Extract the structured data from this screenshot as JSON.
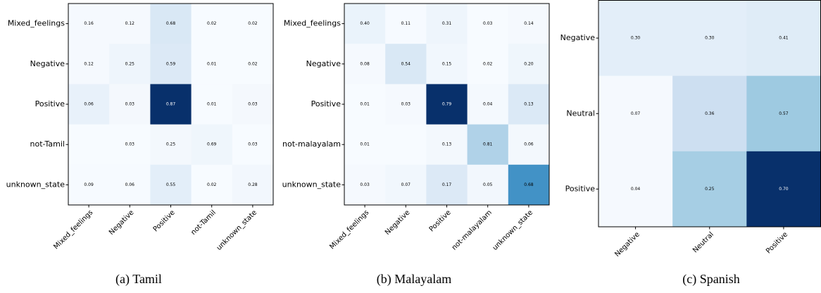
{
  "chart_data": [
    {
      "type": "heatmap",
      "caption": "(a) Tamil",
      "rows": [
        "Mixed_feelings",
        "Negative",
        "Positive",
        "not-Tamil",
        "unknown_state"
      ],
      "columns": [
        "Mixed_feelings",
        "Negative",
        "Positive",
        "not-Tamil",
        "unknown_state"
      ],
      "values": [
        [
          0.16,
          0.12,
          0.68,
          0.02,
          0.02
        ],
        [
          0.12,
          0.25,
          0.59,
          0.01,
          0.02
        ],
        [
          0.06,
          0.03,
          0.87,
          0.01,
          0.03
        ],
        [
          null,
          0.03,
          0.25,
          0.69,
          0.03
        ],
        [
          0.09,
          0.06,
          0.55,
          0.02,
          0.28
        ]
      ],
      "value_labels": [
        [
          "0.16",
          "0.12",
          "0.68",
          "0.02",
          "0.02"
        ],
        [
          "0.12",
          "0.25",
          "0.59",
          "0.01",
          "0.02"
        ],
        [
          "0.06",
          "0.03",
          "0.87",
          "0.01",
          "0.03"
        ],
        [
          null,
          "0.03",
          "0.25",
          "0.69",
          "0.03"
        ],
        [
          "0.09",
          "0.06",
          "0.55",
          "0.02",
          "0.28"
        ]
      ],
      "colors": [
        [
          "#f5f9fe",
          "#f5f9fe",
          "#d9e8f5",
          "#f7fbff",
          "#f7fbff"
        ],
        [
          "#f5f9fe",
          "#eef5fc",
          "#dce9f6",
          "#f7fbff",
          "#f7fbff"
        ],
        [
          "#e8f1fa",
          "#f4f8fd",
          "#08306b",
          "#f7fbff",
          "#f4f8fd"
        ],
        [
          "#f7fbff",
          "#f7fbff",
          "#f3f8fd",
          "#eff6fc",
          "#f7fbff"
        ],
        [
          "#f6faff",
          "#f6faff",
          "#e3eef9",
          "#f7fbff",
          "#f2f7fd"
        ]
      ]
    },
    {
      "type": "heatmap",
      "caption": "(b) Malayalam",
      "rows": [
        "Mixed_feelings",
        "Negative",
        "Positive",
        "not-malayalam",
        "unknown_state"
      ],
      "columns": [
        "Mixed_feelings",
        "Negative",
        "Positive",
        "not-malayalam",
        "unknown_state"
      ],
      "values": [
        [
          0.4,
          0.11,
          0.31,
          0.03,
          0.14
        ],
        [
          0.08,
          0.54,
          0.15,
          0.02,
          0.2
        ],
        [
          0.01,
          0.03,
          0.79,
          0.04,
          0.13
        ],
        [
          0.01,
          null,
          0.13,
          0.81,
          0.06
        ],
        [
          0.03,
          0.07,
          0.17,
          0.05,
          0.68
        ]
      ],
      "value_labels": [
        [
          "0.40",
          "0.11",
          "0.31",
          "0.03",
          "0.14"
        ],
        [
          "0.08",
          "0.54",
          "0.15",
          "0.02",
          "0.20"
        ],
        [
          "0.01",
          "0.03",
          "0.79",
          "0.04",
          "0.13"
        ],
        [
          "0.01",
          null,
          "0.13",
          "0.81",
          "0.06"
        ],
        [
          "0.03",
          "0.07",
          "0.17",
          "0.05",
          "0.68"
        ]
      ],
      "colors": [
        [
          "#eaf3fb",
          "#f6faff",
          "#eef5fc",
          "#f7fbff",
          "#f5f9fe"
        ],
        [
          "#f5f9fe",
          "#d9e8f5",
          "#f1f7fd",
          "#f7fbff",
          "#eff6fc"
        ],
        [
          "#f7fbff",
          "#f5f9fe",
          "#08306b",
          "#f4f9fe",
          "#dbe9f6"
        ],
        [
          "#f7fbff",
          "#f7fbff",
          "#f3f8fd",
          "#b0d2e8",
          "#f3f8fd"
        ],
        [
          "#f5f9fe",
          "#f1f7fd",
          "#dce9f6",
          "#f2f7fd",
          "#4292c6"
        ]
      ]
    },
    {
      "type": "heatmap",
      "caption": "(c) Spanish",
      "rows": [
        "Negative",
        "Neutral",
        "Positive"
      ],
      "columns": [
        "Negative",
        "Neutral",
        "Positive"
      ],
      "values": [
        [
          0.3,
          0.3,
          0.41
        ],
        [
          0.07,
          0.36,
          0.57
        ],
        [
          0.04,
          0.25,
          0.7
        ]
      ],
      "value_labels": [
        [
          "0.30",
          "0.30",
          "0.41"
        ],
        [
          "0.07",
          "0.36",
          "0.57"
        ],
        [
          "0.04",
          "0.25",
          "0.70"
        ]
      ],
      "colors": [
        [
          "#e3eef9",
          "#e3eef9",
          "#dfecf7"
        ],
        [
          "#f5f9fe",
          "#cddff1",
          "#9ecae1"
        ],
        [
          "#f5f9fe",
          "#a6cee4",
          "#08306b"
        ]
      ]
    }
  ]
}
